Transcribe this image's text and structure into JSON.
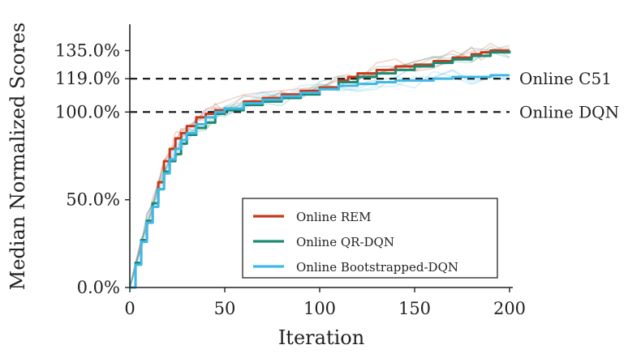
{
  "chart_data": {
    "type": "line",
    "xlabel": "Iteration",
    "ylabel": "Median Normalized Scores",
    "xlim": [
      0,
      200
    ],
    "ylim": [
      0,
      150
    ],
    "x_ticks": [
      0,
      50,
      100,
      150,
      200
    ],
    "x_tick_labels": [
      "0",
      "50",
      "100",
      "150",
      "200"
    ],
    "y_ticks": [
      0,
      50,
      100,
      119,
      135
    ],
    "y_tick_labels": [
      "0.0%",
      "50.0%",
      "100.0%",
      "119.0%",
      "135.0%"
    ],
    "reference_lines": [
      {
        "name": "Online C51",
        "value": 119,
        "color": "#111111"
      },
      {
        "name": "Online DQN",
        "value": 100,
        "color": "#111111"
      }
    ],
    "series": [
      {
        "name": "Online REM",
        "color": "#c8391a",
        "x": [
          0,
          3,
          6,
          9,
          12,
          15,
          18,
          21,
          24,
          27,
          30,
          35,
          40,
          45,
          50,
          60,
          70,
          80,
          90,
          100,
          110,
          115,
          120,
          130,
          140,
          150,
          160,
          170,
          180,
          185,
          190,
          200
        ],
        "values": [
          0,
          14,
          27,
          37,
          48,
          60,
          72,
          79,
          85,
          88,
          92,
          97,
          99,
          101,
          102,
          106,
          108,
          110,
          112,
          114,
          118,
          120,
          122,
          124,
          126,
          127,
          129,
          131,
          133,
          134,
          135,
          135
        ]
      },
      {
        "name": "Online QR-DQN",
        "color": "#1b8a72",
        "x": [
          0,
          3,
          6,
          9,
          12,
          15,
          18,
          21,
          24,
          27,
          30,
          35,
          40,
          45,
          50,
          60,
          70,
          80,
          90,
          100,
          110,
          120,
          130,
          140,
          150,
          160,
          170,
          180,
          190,
          200
        ],
        "values": [
          0,
          14,
          27,
          38,
          48,
          56,
          66,
          72,
          76,
          82,
          87,
          91,
          94,
          99,
          101,
          104,
          106,
          108,
          110,
          113,
          117,
          120,
          122,
          124,
          126,
          128,
          130,
          132,
          134,
          135
        ]
      },
      {
        "name": "Online Bootstrapped-DQN",
        "color": "#3fb8e6",
        "x": [
          0,
          3,
          6,
          9,
          12,
          15,
          18,
          21,
          24,
          27,
          30,
          35,
          40,
          45,
          50,
          60,
          70,
          80,
          90,
          100,
          110,
          120,
          130,
          140,
          150,
          160,
          170,
          180,
          190,
          200
        ],
        "values": [
          0,
          13,
          26,
          37,
          46,
          56,
          65,
          73,
          79,
          84,
          88,
          93,
          97,
          100,
          102,
          105,
          107,
          109,
          111,
          113,
          115,
          116,
          117,
          118,
          118,
          119,
          120,
          120,
          121,
          121
        ]
      }
    ],
    "legend": {
      "position": "lower-right",
      "entries": [
        "Online REM",
        "Online QR-DQN",
        "Online Bootstrapped-DQN"
      ]
    }
  }
}
